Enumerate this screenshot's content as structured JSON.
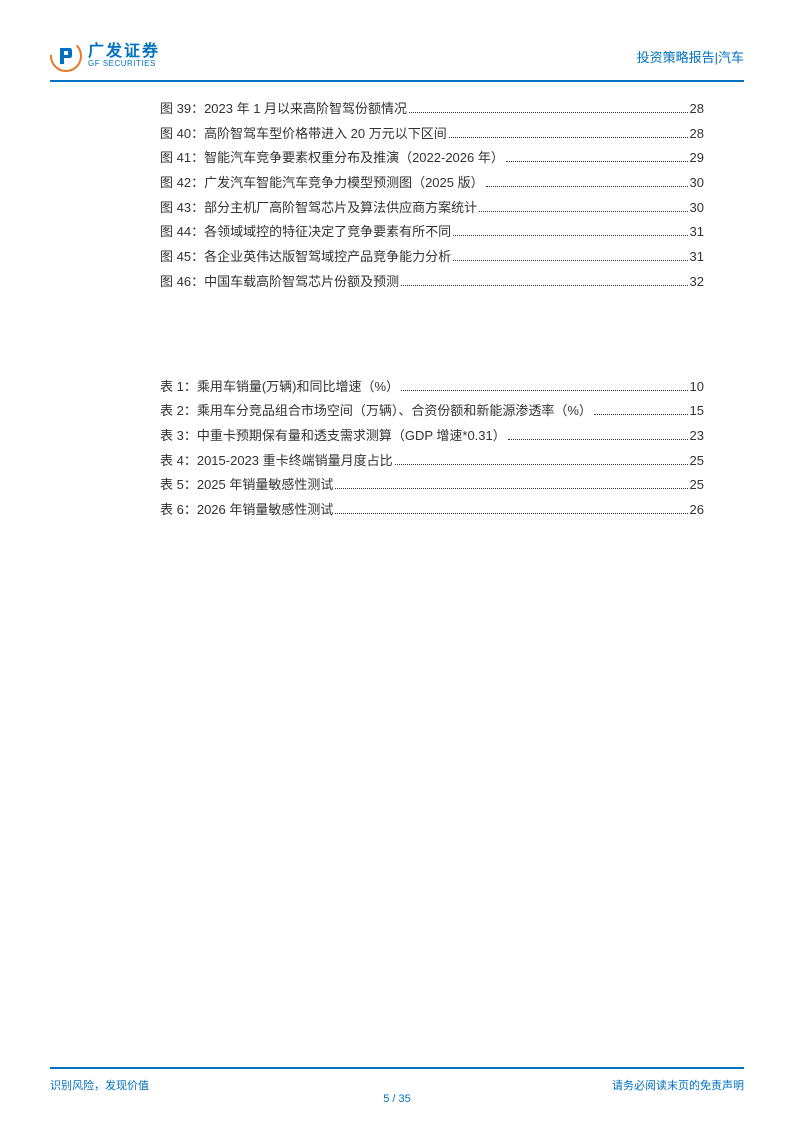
{
  "header": {
    "logo_cn": "广发证券",
    "logo_en": "GF SECURITIES",
    "right_text": "投资策略报告|汽车"
  },
  "colors": {
    "brand": "#0070c0",
    "logo_orange": "#e8792b",
    "text": "#333333",
    "background": "#ffffff"
  },
  "toc_figures": [
    {
      "label": "图 39：2023 年 1 月以来高阶智驾份额情况",
      "page": "28"
    },
    {
      "label": "图 40：高阶智驾车型价格带进入 20 万元以下区间",
      "page": "28"
    },
    {
      "label": "图 41：智能汽车竞争要素权重分布及推演（2022-2026 年）",
      "page": "29"
    },
    {
      "label": "图 42：广发汽车智能汽车竞争力模型预测图（2025 版）",
      "page": "30"
    },
    {
      "label": "图 43：部分主机厂高阶智驾芯片及算法供应商方案统计",
      "page": "30"
    },
    {
      "label": "图 44：各领域域控的特征决定了竞争要素有所不同",
      "page": "31"
    },
    {
      "label": "图 45：各企业英伟达版智驾域控产品竞争能力分析",
      "page": "31"
    },
    {
      "label": "图 46：中国车载高阶智驾芯片份额及预测",
      "page": "32"
    }
  ],
  "toc_tables": [
    {
      "label": "表 1：乘用车销量(万辆)和同比增速（%）",
      "page": "10"
    },
    {
      "label": "表 2：乘用车分竞品组合市场空间（万辆）、合资份额和新能源渗透率（%）",
      "page": "15"
    },
    {
      "label": "表 3：中重卡预期保有量和透支需求测算（GDP 增速*0.31）",
      "page": "23"
    },
    {
      "label": "表 4：2015-2023 重卡终端销量月度占比",
      "page": "25"
    },
    {
      "label": "表 5：2025 年销量敏感性测试",
      "page": "25"
    },
    {
      "label": "表 6：2026 年销量敏感性测试",
      "page": "26"
    }
  ],
  "footer": {
    "left": "识别风险，发现价值",
    "right": "请务必阅读末页的免责声明",
    "page": "5 / 35"
  }
}
